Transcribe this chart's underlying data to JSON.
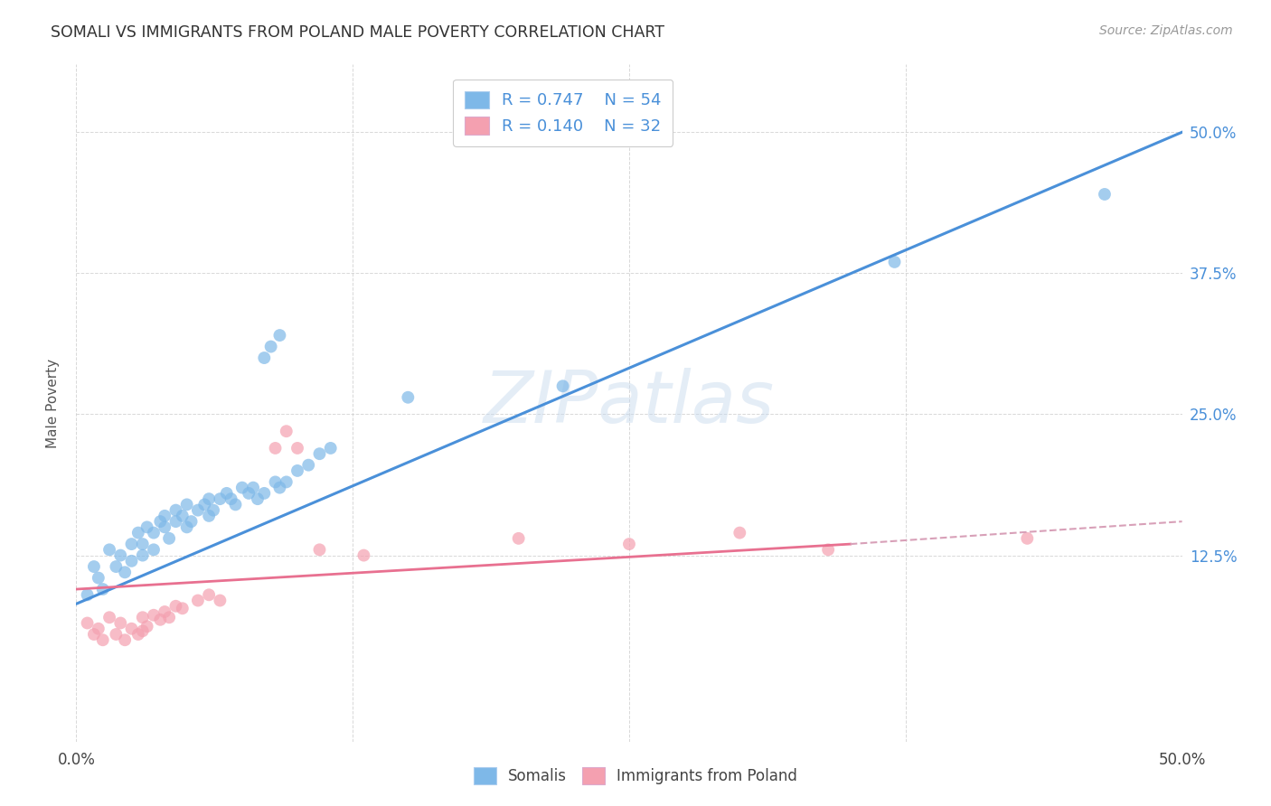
{
  "title": "SOMALI VS IMMIGRANTS FROM POLAND MALE POVERTY CORRELATION CHART",
  "source": "Source: ZipAtlas.com",
  "ylabel_label": "Male Poverty",
  "xlim": [
    0.0,
    0.5
  ],
  "ylim": [
    -0.04,
    0.56
  ],
  "xticks": [
    0.0,
    0.125,
    0.25,
    0.375,
    0.5
  ],
  "xtick_labels": [
    "0.0%",
    "",
    "",
    "",
    "50.0%"
  ],
  "ytick_labels_right": [
    "50.0%",
    "37.5%",
    "25.0%",
    "12.5%"
  ],
  "ytick_positions_right": [
    0.5,
    0.375,
    0.25,
    0.125
  ],
  "grid_color": "#c8c8c8",
  "background_color": "#ffffff",
  "somali_color": "#7eb8e8",
  "poland_color": "#f4a0b0",
  "somali_line_color": "#4a90d9",
  "poland_line_solid_color": "#e87090",
  "poland_line_dashed_color": "#d8a0b8",
  "R_somali": 0.747,
  "N_somali": 54,
  "R_poland": 0.14,
  "N_poland": 32,
  "legend_text_color": "#4a90d9",
  "watermark": "ZIPatlas",
  "somali_line": [
    0.0,
    0.082,
    0.5,
    0.5
  ],
  "poland_line_solid": [
    0.0,
    0.095,
    0.35,
    0.135
  ],
  "poland_line_dashed": [
    0.35,
    0.135,
    0.5,
    0.155
  ],
  "somali_scatter": [
    [
      0.005,
      0.09
    ],
    [
      0.008,
      0.115
    ],
    [
      0.01,
      0.105
    ],
    [
      0.012,
      0.095
    ],
    [
      0.015,
      0.13
    ],
    [
      0.018,
      0.115
    ],
    [
      0.02,
      0.125
    ],
    [
      0.022,
      0.11
    ],
    [
      0.025,
      0.135
    ],
    [
      0.025,
      0.12
    ],
    [
      0.028,
      0.145
    ],
    [
      0.03,
      0.135
    ],
    [
      0.03,
      0.125
    ],
    [
      0.032,
      0.15
    ],
    [
      0.035,
      0.145
    ],
    [
      0.035,
      0.13
    ],
    [
      0.038,
      0.155
    ],
    [
      0.04,
      0.16
    ],
    [
      0.04,
      0.15
    ],
    [
      0.042,
      0.14
    ],
    [
      0.045,
      0.165
    ],
    [
      0.045,
      0.155
    ],
    [
      0.048,
      0.16
    ],
    [
      0.05,
      0.17
    ],
    [
      0.05,
      0.15
    ],
    [
      0.052,
      0.155
    ],
    [
      0.055,
      0.165
    ],
    [
      0.058,
      0.17
    ],
    [
      0.06,
      0.175
    ],
    [
      0.06,
      0.16
    ],
    [
      0.062,
      0.165
    ],
    [
      0.065,
      0.175
    ],
    [
      0.068,
      0.18
    ],
    [
      0.07,
      0.175
    ],
    [
      0.072,
      0.17
    ],
    [
      0.075,
      0.185
    ],
    [
      0.078,
      0.18
    ],
    [
      0.08,
      0.185
    ],
    [
      0.082,
      0.175
    ],
    [
      0.085,
      0.18
    ],
    [
      0.09,
      0.19
    ],
    [
      0.092,
      0.185
    ],
    [
      0.095,
      0.19
    ],
    [
      0.1,
      0.2
    ],
    [
      0.105,
      0.205
    ],
    [
      0.11,
      0.215
    ],
    [
      0.115,
      0.22
    ],
    [
      0.085,
      0.3
    ],
    [
      0.088,
      0.31
    ],
    [
      0.092,
      0.32
    ],
    [
      0.15,
      0.265
    ],
    [
      0.22,
      0.275
    ],
    [
      0.37,
      0.385
    ],
    [
      0.465,
      0.445
    ]
  ],
  "poland_scatter": [
    [
      0.005,
      0.065
    ],
    [
      0.008,
      0.055
    ],
    [
      0.01,
      0.06
    ],
    [
      0.012,
      0.05
    ],
    [
      0.015,
      0.07
    ],
    [
      0.018,
      0.055
    ],
    [
      0.02,
      0.065
    ],
    [
      0.022,
      0.05
    ],
    [
      0.025,
      0.06
    ],
    [
      0.028,
      0.055
    ],
    [
      0.03,
      0.07
    ],
    [
      0.03,
      0.058
    ],
    [
      0.032,
      0.062
    ],
    [
      0.035,
      0.072
    ],
    [
      0.038,
      0.068
    ],
    [
      0.04,
      0.075
    ],
    [
      0.042,
      0.07
    ],
    [
      0.045,
      0.08
    ],
    [
      0.048,
      0.078
    ],
    [
      0.055,
      0.085
    ],
    [
      0.06,
      0.09
    ],
    [
      0.065,
      0.085
    ],
    [
      0.09,
      0.22
    ],
    [
      0.095,
      0.235
    ],
    [
      0.1,
      0.22
    ],
    [
      0.11,
      0.13
    ],
    [
      0.13,
      0.125
    ],
    [
      0.2,
      0.14
    ],
    [
      0.25,
      0.135
    ],
    [
      0.3,
      0.145
    ],
    [
      0.34,
      0.13
    ],
    [
      0.43,
      0.14
    ]
  ]
}
